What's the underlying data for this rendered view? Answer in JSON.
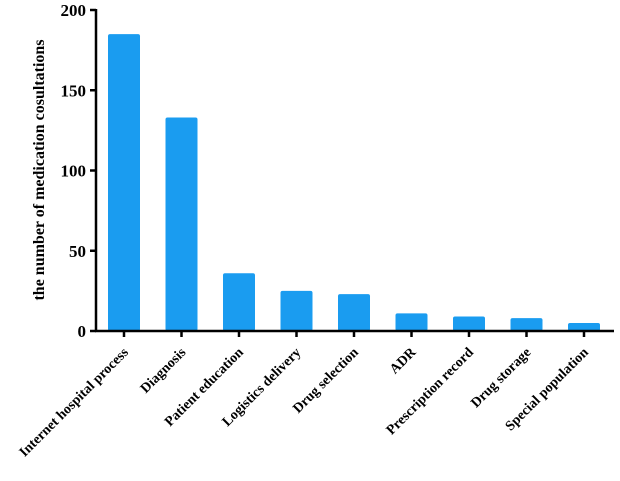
{
  "chart_data": {
    "type": "bar",
    "title": "",
    "xlabel": "",
    "ylabel": "the number of medication cosultations",
    "categories": [
      "Internet hospital process",
      "Diagnosis",
      "Patient education",
      "Logistics delivery",
      "Drug selection",
      "ADR",
      "Prescription record",
      "Drug storage",
      "Special population"
    ],
    "values": [
      185,
      133,
      36,
      25,
      23,
      11,
      9,
      8,
      5
    ],
    "ylim": [
      0,
      200
    ],
    "yticks": [
      "0",
      "50",
      "100",
      "150",
      "200"
    ],
    "grid": false,
    "colors": {
      "bar": "#1a9cf0"
    }
  }
}
